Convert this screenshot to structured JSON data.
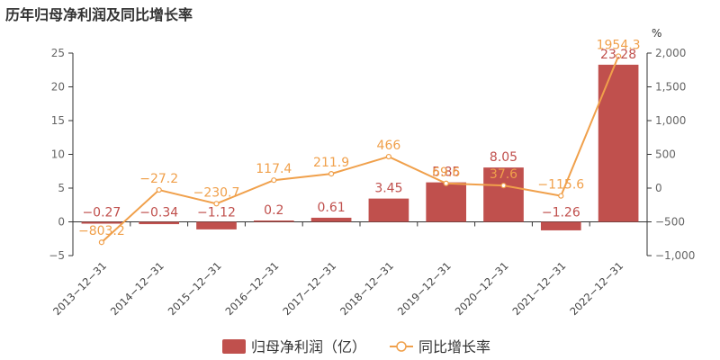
{
  "title": "历年归母净利润及同比增长率",
  "chart_data": {
    "type": "bar",
    "categories": [
      "2013-12-31",
      "2014-12-31",
      "2015-12-31",
      "2016-12-31",
      "2017-12-31",
      "2018-12-31",
      "2019-12-31",
      "2020-12-31",
      "2021-12-31",
      "2022-12-31"
    ],
    "series": [
      {
        "name": "归母净利润（亿）",
        "type": "bar",
        "axis": "left",
        "values": [
          -0.27,
          -0.34,
          -1.12,
          0.2,
          0.61,
          3.45,
          5.85,
          8.05,
          -1.26,
          23.28
        ],
        "labels": [
          "-0.27",
          "-0.34",
          "-1.12",
          "0.2",
          "0.61",
          "3.45",
          "5.85",
          "8.05",
          "-1.26",
          "23.28"
        ],
        "color": "#c0504d"
      },
      {
        "name": "同比增长率",
        "type": "line",
        "axis": "right",
        "values": [
          -803.2,
          -27.2,
          -230.7,
          117.4,
          211.9,
          466,
          69.6,
          37.6,
          -115.6,
          1954.3
        ],
        "labels": [
          "-803.2",
          "-27.2",
          "-230.7",
          "117.4",
          "211.9",
          "466",
          "69.6",
          "37.6",
          "-115.6",
          "1954.3"
        ],
        "color": "#f0a04b"
      }
    ],
    "y_left": {
      "ylim": [
        -5,
        25
      ],
      "ticks": [
        "-5",
        "0",
        "5",
        "10",
        "15",
        "20",
        "25"
      ]
    },
    "y_right": {
      "ylim": [
        -1000,
        2000
      ],
      "ticks": [
        "-1,000",
        "-500",
        "0",
        "500",
        "1,000",
        "1,500",
        "2,000"
      ],
      "unit": "%"
    },
    "legend": "bottom-center",
    "grid": false
  }
}
